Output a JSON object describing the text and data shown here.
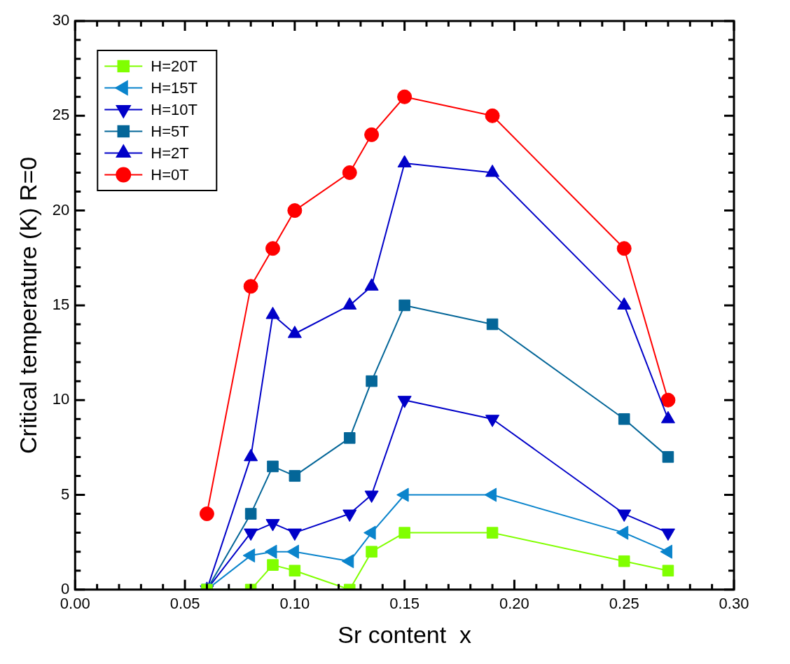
{
  "chart_data": {
    "type": "line",
    "xlabel": "Sr content  x",
    "ylabel": "Critical temperature (K) R=0",
    "x": [
      0.06,
      0.08,
      0.09,
      0.1,
      0.125,
      0.135,
      0.15,
      0.19,
      0.25,
      0.27
    ],
    "xlim": [
      0,
      0.3
    ],
    "xticks": [
      {
        "value": 0,
        "label": "0.00"
      },
      {
        "value": 0.01,
        "label": null
      },
      {
        "value": 0.02,
        "label": null
      },
      {
        "value": 0.03,
        "label": null
      },
      {
        "value": 0.04,
        "label": null
      },
      {
        "value": 0.05,
        "label": "0.05"
      },
      {
        "value": 0.06,
        "label": null
      },
      {
        "value": 0.07,
        "label": null
      },
      {
        "value": 0.08,
        "label": null
      },
      {
        "value": 0.09,
        "label": null
      },
      {
        "value": 0.1,
        "label": "0.10"
      },
      {
        "value": 0.11,
        "label": null
      },
      {
        "value": 0.12,
        "label": null
      },
      {
        "value": 0.13,
        "label": null
      },
      {
        "value": 0.14,
        "label": null
      },
      {
        "value": 0.15,
        "label": "0.15"
      },
      {
        "value": 0.16,
        "label": null
      },
      {
        "value": 0.17,
        "label": null
      },
      {
        "value": 0.18,
        "label": null
      },
      {
        "value": 0.19,
        "label": null
      },
      {
        "value": 0.2,
        "label": "0.20"
      },
      {
        "value": 0.21,
        "label": null
      },
      {
        "value": 0.22,
        "label": null
      },
      {
        "value": 0.23,
        "label": null
      },
      {
        "value": 0.24,
        "label": null
      },
      {
        "value": 0.25,
        "label": "0.25"
      },
      {
        "value": 0.26,
        "label": null
      },
      {
        "value": 0.27,
        "label": null
      },
      {
        "value": 0.28,
        "label": null
      },
      {
        "value": 0.29,
        "label": null
      },
      {
        "value": 0.3,
        "label": "0.30"
      }
    ],
    "ylim": [
      0,
      30
    ],
    "yticks": [
      0,
      {
        "value": 1,
        "label": null
      },
      {
        "value": 2,
        "label": null
      },
      {
        "value": 3,
        "label": null
      },
      {
        "value": 4,
        "label": null
      },
      5,
      {
        "value": 6,
        "label": null
      },
      {
        "value": 7,
        "label": null
      },
      {
        "value": 8,
        "label": null
      },
      {
        "value": 9,
        "label": null
      },
      10,
      {
        "value": 11,
        "label": null
      },
      {
        "value": 12,
        "label": null
      },
      {
        "value": 13,
        "label": null
      },
      {
        "value": 14,
        "label": null
      },
      15,
      {
        "value": 16,
        "label": null
      },
      {
        "value": 17,
        "label": null
      },
      {
        "value": 18,
        "label": null
      },
      {
        "value": 19,
        "label": null
      },
      20,
      {
        "value": 21,
        "label": null
      },
      {
        "value": 22,
        "label": null
      },
      {
        "value": 23,
        "label": null
      },
      {
        "value": 24,
        "label": null
      },
      25,
      {
        "value": 26,
        "label": null
      },
      {
        "value": 27,
        "label": null
      },
      {
        "value": 28,
        "label": null
      },
      {
        "value": 29,
        "label": null
      },
      30
    ],
    "legend": "top left",
    "series": [
      {
        "name": "H=20T",
        "color": "#80ff00",
        "marker": "square",
        "values": [
          0,
          0,
          1.3,
          1,
          0,
          2,
          3,
          3,
          1.5,
          1
        ]
      },
      {
        "name": "H=15T",
        "color": "#0a84cc",
        "marker": "triangle-left",
        "values": [
          0,
          1.8,
          2,
          2,
          1.5,
          3,
          5,
          5,
          3,
          2
        ]
      },
      {
        "name": "H=10T",
        "color": "#0000c8",
        "marker": "triangle-down",
        "values": [
          0,
          3,
          3.5,
          3,
          4,
          5,
          10,
          9,
          4,
          3
        ]
      },
      {
        "name": "H=5T",
        "color": "#046698",
        "marker": "square",
        "values": [
          0,
          4,
          6.5,
          6,
          8,
          11,
          15,
          14,
          9,
          7
        ]
      },
      {
        "name": "H=2T",
        "color": "#0000c8",
        "marker": "triangle",
        "values": [
          0,
          7,
          14.5,
          13.5,
          15,
          16,
          22.5,
          22,
          15,
          9
        ]
      },
      {
        "name": "H=0T",
        "color": "#ff0000",
        "marker": "circle",
        "values": [
          4,
          16,
          18,
          20,
          22,
          24,
          26,
          25,
          18,
          10
        ]
      }
    ]
  }
}
